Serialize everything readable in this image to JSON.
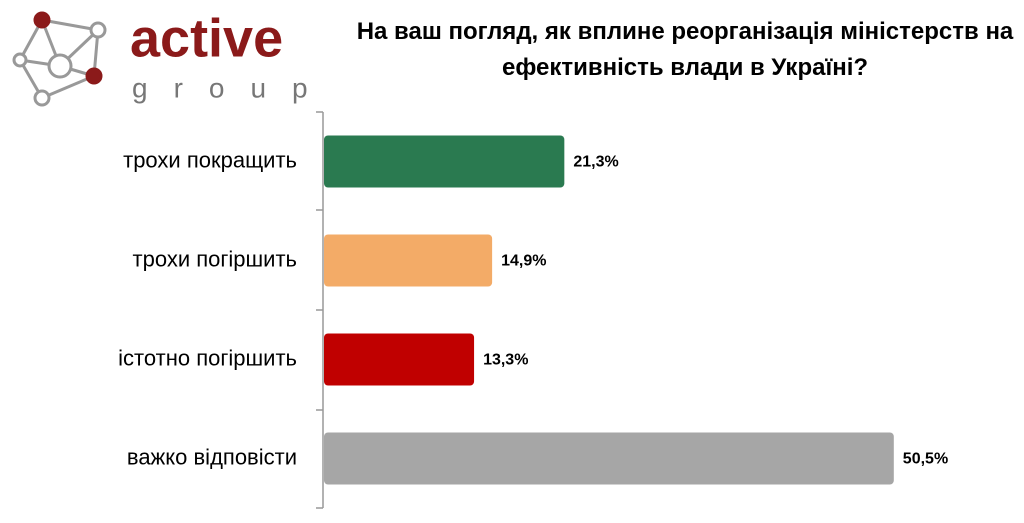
{
  "logo": {
    "name": "active",
    "tagline": "group"
  },
  "chart_data": {
    "type": "bar",
    "orientation": "horizontal",
    "title": "На ваш погляд, як вплине реорганізація міністерств на ефективність влади в Україні?",
    "categories": [
      "трохи покращить",
      "трохи погіршить",
      "істотно погіршить",
      "важко відповісти"
    ],
    "values": [
      21.3,
      14.9,
      13.3,
      50.5
    ],
    "value_labels": [
      "21,3%",
      "14,9%",
      "13,3%",
      "50,5%"
    ],
    "colors": [
      "#2a7a50",
      "#f3ab67",
      "#c00000",
      "#a6a6a6"
    ],
    "xlim": [
      0,
      60
    ]
  }
}
